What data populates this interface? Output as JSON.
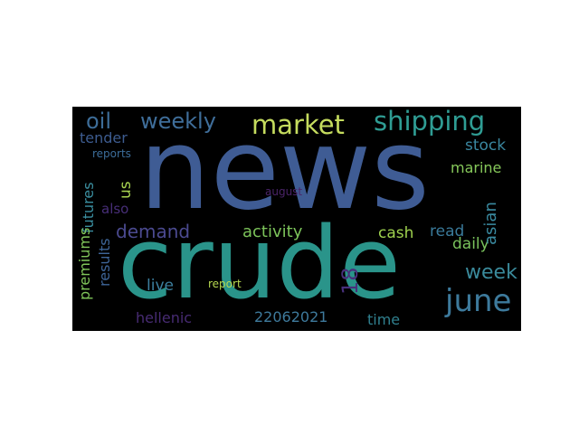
{
  "words": {
    "news": {
      "text": "news",
      "color": "#3f5c94"
    },
    "crude": {
      "text": "crude",
      "color": "#2a948a"
    },
    "shipping": {
      "text": "shipping",
      "color": "#2f9d94"
    },
    "market": {
      "text": "market",
      "color": "#c5dc5e"
    },
    "oil": {
      "text": "oil",
      "color": "#3d6d98"
    },
    "weekly": {
      "text": "weekly",
      "color": "#3f6e9a"
    },
    "june": {
      "text": "june",
      "color": "#3d7a9c"
    },
    "week": {
      "text": "week",
      "color": "#3a8a9b"
    },
    "demand": {
      "text": "demand",
      "color": "#4b4a90"
    },
    "activity": {
      "text": "activity",
      "color": "#7cc35a"
    },
    "cash": {
      "text": "cash",
      "color": "#9ed14e"
    },
    "read": {
      "text": "read",
      "color": "#3a7a9a"
    },
    "daily": {
      "text": "daily",
      "color": "#79c25c"
    },
    "live": {
      "text": "live",
      "color": "#3d80a0"
    },
    "report": {
      "text": "report",
      "color": "#b7d950"
    },
    "hellenic": {
      "text": "hellenic",
      "color": "#472b73"
    },
    "n22062021": {
      "text": "22062021",
      "color": "#3e7a9c"
    },
    "time": {
      "text": "time",
      "color": "#30808f"
    },
    "tender": {
      "text": "tender",
      "color": "#3d5c90"
    },
    "stock": {
      "text": "stock",
      "color": "#3a87a0"
    },
    "marine": {
      "text": "marine",
      "color": "#86c85a"
    },
    "reports": {
      "text": "reports",
      "color": "#3c6d9a"
    },
    "august": {
      "text": "august",
      "color": "#4b2469"
    },
    "also": {
      "text": "also",
      "color": "#472e78"
    },
    "us": {
      "text": "us",
      "color": "#a8d450"
    },
    "futures": {
      "text": "futures",
      "color": "#3b8fa0"
    },
    "premiums": {
      "text": "premiums",
      "color": "#80c65a"
    },
    "results": {
      "text": "results",
      "color": "#3e6598"
    },
    "asian": {
      "text": "asian",
      "color": "#3a8aa0"
    },
    "n18": {
      "text": "18",
      "color": "#48307c"
    }
  }
}
